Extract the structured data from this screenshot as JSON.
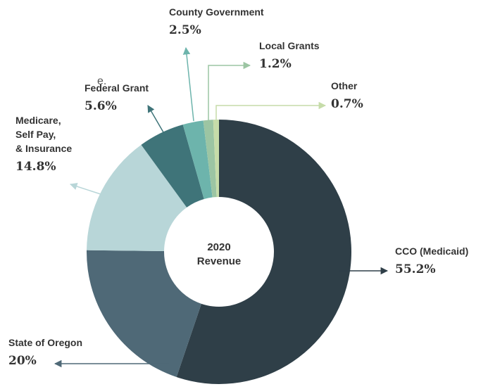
{
  "chart_data": {
    "type": "donut",
    "categories": [
      "CCO (Medicaid)",
      "State of Oregon",
      "Medicare,\nSelf Pay,\n& Insurance",
      "Federal Grant",
      "County Government",
      "Local Grants",
      "Other"
    ],
    "values": [
      55.2,
      20,
      14.8,
      5.6,
      2.5,
      1.2,
      0.7
    ],
    "value_labels": [
      "55.2%",
      "20%",
      "14.8%",
      "5.6%",
      "2.5%",
      "1.2%",
      "0.7%"
    ],
    "colors": [
      "#2f3f48",
      "#4f6977",
      "#b8d6d8",
      "#3f7479",
      "#6db4ac",
      "#9cc5a3",
      "#c6dca9"
    ],
    "center_label": [
      "2020",
      "Revenue"
    ],
    "fragment": "e."
  }
}
